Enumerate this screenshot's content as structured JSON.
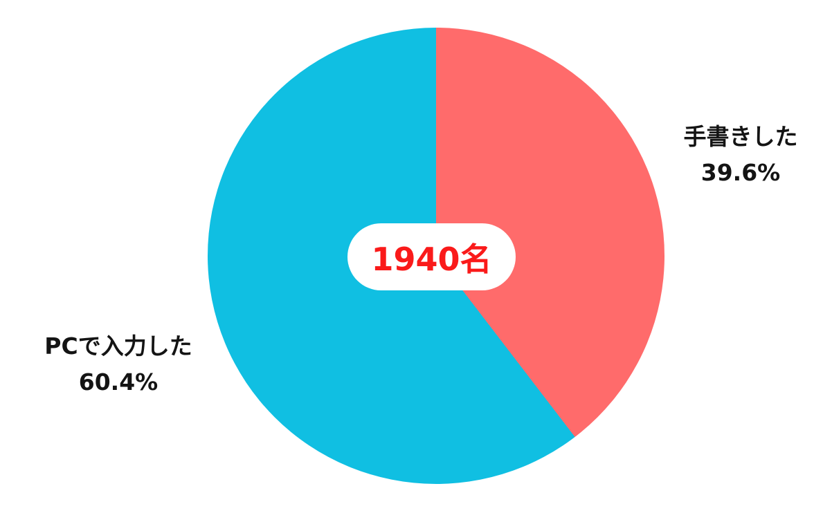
{
  "chart_data": {
    "type": "pie",
    "title": "",
    "background": "#FFFFFF",
    "start_angle_deg": 0,
    "direction": "clockwise",
    "legend_position": "labels-outside",
    "center_label": "1940名",
    "center_label_color": "#FA1A1A",
    "center_badge_background": "#FFFFFF",
    "slices": [
      {
        "label": "手書きした",
        "percent_label": "39.6%",
        "value": 39.6,
        "color": "#FF6B6B"
      },
      {
        "label": "PCで入力した",
        "percent_label": "60.4%",
        "value": 60.4,
        "color": "#10BFE2"
      }
    ]
  }
}
